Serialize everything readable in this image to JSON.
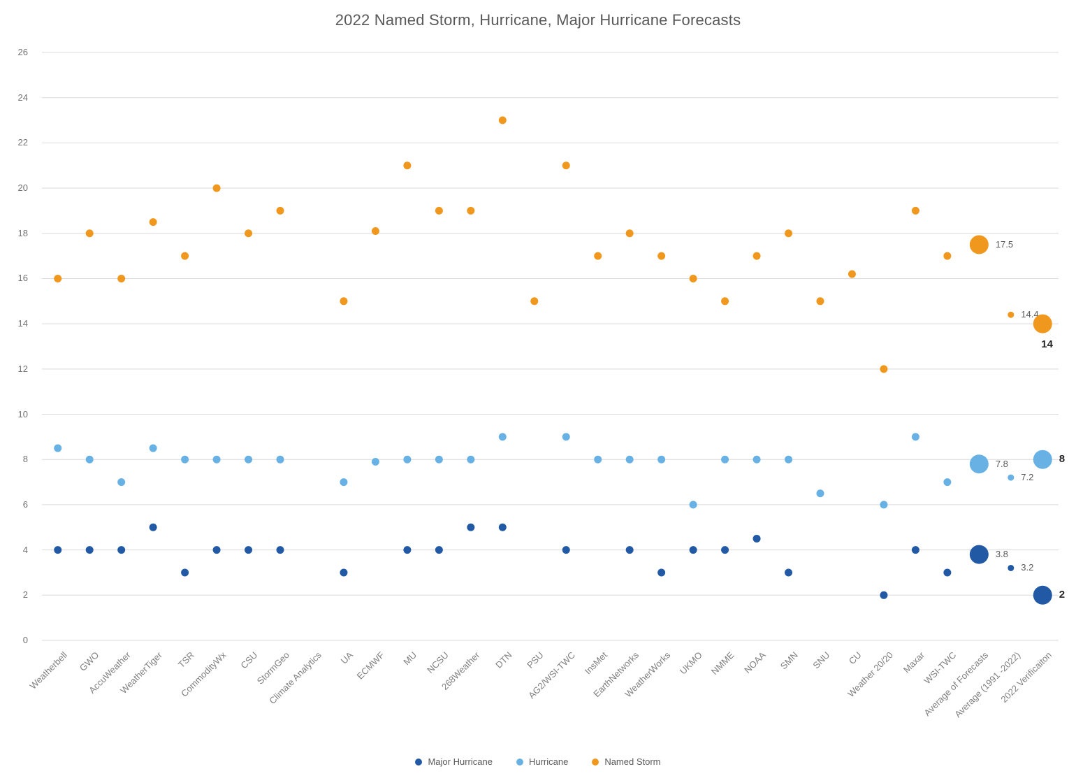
{
  "chart_data": {
    "type": "scatter",
    "title": "2022 Named Storm, Hurricane, Major Hurricane Forecasts",
    "xlabel": "",
    "ylabel": "",
    "ylim": [
      0,
      26
    ],
    "ytick_step": 2,
    "grid": "horizontal",
    "legend_position": "bottom",
    "categories": [
      "Weatherbell",
      "GWO",
      "AccuWeather",
      "WeatherTiger",
      "TSR",
      "CommodityWx",
      "CSU",
      "StormGeo",
      "Climate Analytics",
      "UA",
      "ECMWF",
      "MU",
      "NCSU",
      "268Weather",
      "DTN",
      "PSU",
      "AG2/WSI-TWC",
      "InsMet",
      "EarthNetworks",
      "WeatherWorks",
      "UKMO",
      "NMME",
      "NOAA",
      "SMN",
      "SNU",
      "CU",
      "Weather 20/20",
      "Maxar",
      "WSI-TWC",
      "Average of Forecasts",
      "Average (1991 -2022)",
      "2022 Verificaiton"
    ],
    "point_sizes": {
      "29": "large",
      "30": "small",
      "31": "large"
    },
    "series": [
      {
        "name": "Major Hurricane",
        "color": "#2159a5",
        "values": [
          4,
          4,
          4,
          5,
          3,
          4,
          4,
          4,
          null,
          3,
          null,
          4,
          4,
          5,
          5,
          null,
          4,
          null,
          4,
          3,
          4,
          4,
          4.5,
          3,
          null,
          null,
          2,
          4,
          3,
          3.8,
          3.2,
          2
        ],
        "labels": [
          {
            "i": 29,
            "text": "3.8",
            "bold": false,
            "placement": "right"
          },
          {
            "i": 30,
            "text": "3.2",
            "bold": false,
            "placement": "right"
          },
          {
            "i": 31,
            "text": "2",
            "bold": true,
            "placement": "right"
          }
        ]
      },
      {
        "name": "Hurricane",
        "color": "#68b1e5",
        "values": [
          8.5,
          8,
          7,
          8.5,
          8,
          8,
          8,
          8,
          null,
          7,
          7.9,
          8,
          8,
          8,
          9,
          null,
          9,
          8,
          8,
          8,
          6,
          8,
          8,
          8,
          6.5,
          null,
          6,
          9,
          7,
          7.8,
          7.2,
          8
        ],
        "labels": [
          {
            "i": 29,
            "text": "7.8",
            "bold": false,
            "placement": "right"
          },
          {
            "i": 30,
            "text": "7.2",
            "bold": false,
            "placement": "right"
          },
          {
            "i": 31,
            "text": "8",
            "bold": true,
            "placement": "right"
          }
        ]
      },
      {
        "name": "Named Storm",
        "color": "#f0981e",
        "values": [
          16,
          18,
          16,
          18.5,
          17,
          20,
          18,
          19,
          null,
          15,
          18.1,
          21,
          19,
          19,
          23,
          15,
          21,
          17,
          18,
          17,
          16,
          15,
          17,
          18,
          15,
          16.2,
          12,
          19,
          17,
          17.5,
          14.4,
          14
        ],
        "labels": [
          {
            "i": 29,
            "text": "17.5",
            "bold": false,
            "placement": "right"
          },
          {
            "i": 30,
            "text": "14.4",
            "bold": false,
            "placement": "right"
          },
          {
            "i": 31,
            "text": "14",
            "bold": true,
            "placement": "below"
          }
        ]
      }
    ]
  }
}
